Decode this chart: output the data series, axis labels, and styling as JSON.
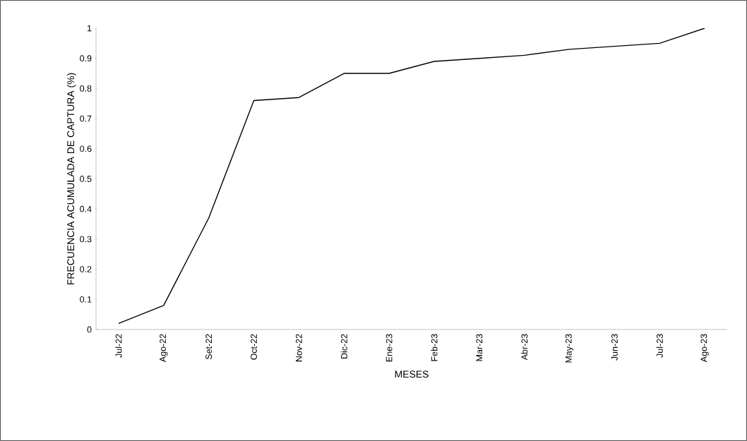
{
  "chart_data": {
    "type": "line",
    "xlabel": "MESES",
    "ylabel": "FRECUENCIA ACUMULADA DE CAPTURA (%)",
    "categories": [
      "Jul-22",
      "Ago-22",
      "Set-22",
      "Oct-22",
      "Nov-22",
      "Dic-22",
      "Ene-23",
      "Feb-23",
      "Mar-23",
      "Abr-23",
      "May-23",
      "Jun-23",
      "Jul-23",
      "Ago-23"
    ],
    "series": [
      {
        "color": "#000000",
        "values": [
          0.02,
          0.08,
          0.37,
          0.76,
          0.77,
          0.85,
          0.85,
          0.89,
          0.9,
          0.91,
          0.93,
          0.94,
          0.95,
          1.0
        ]
      }
    ],
    "ylim": [
      0,
      1
    ],
    "yticks": [
      0,
      0.1,
      0.2,
      0.3,
      0.4,
      0.5,
      0.6,
      0.7,
      0.8,
      0.9,
      1
    ],
    "line_style": "solid"
  }
}
